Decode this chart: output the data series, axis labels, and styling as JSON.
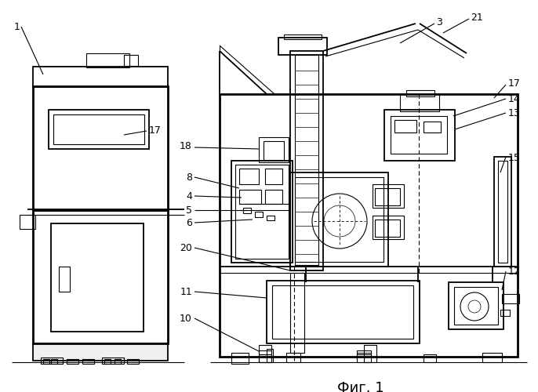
{
  "bg_color": "#ffffff",
  "line_color": "#000000",
  "fig_caption": "Фиг. 1",
  "caption_fontsize": 13,
  "fig_width": 6.86,
  "fig_height": 5.0,
  "dpi": 100
}
